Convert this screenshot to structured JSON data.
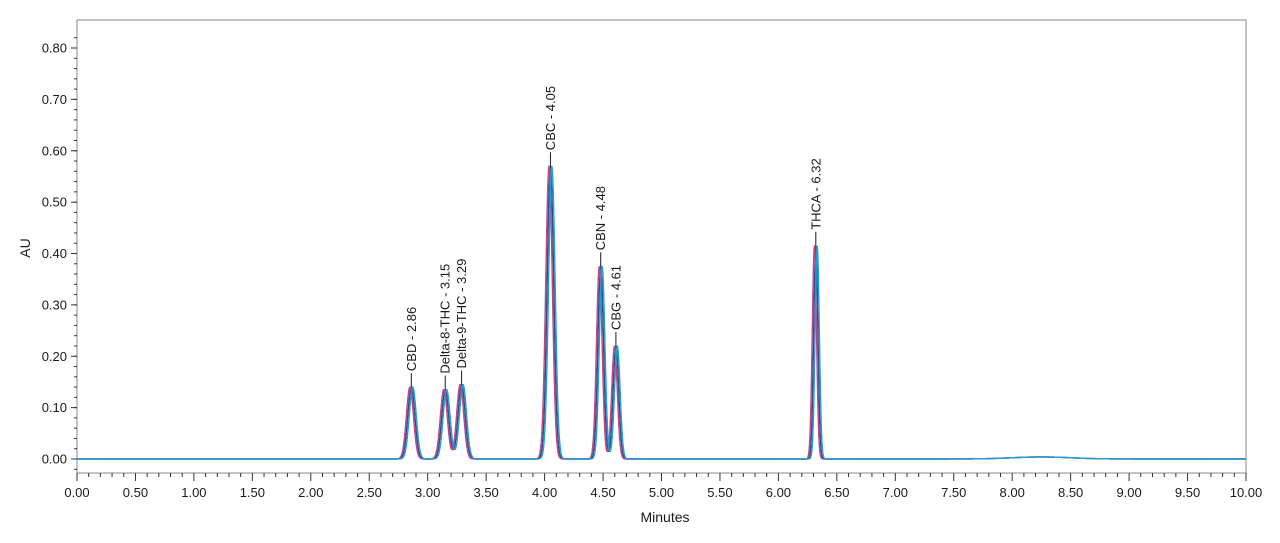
{
  "chart_data": {
    "type": "line",
    "xlabel": "Minutes",
    "ylabel": "AU",
    "xlim": [
      0.0,
      10.0
    ],
    "ylim": [
      -0.03,
      0.85
    ],
    "x_ticks": [
      "0.00",
      "0.50",
      "1.00",
      "1.50",
      "2.00",
      "2.50",
      "3.00",
      "3.50",
      "4.00",
      "4.50",
      "5.00",
      "5.50",
      "6.00",
      "6.50",
      "7.00",
      "7.50",
      "8.00",
      "8.50",
      "9.00",
      "9.50",
      "10.00"
    ],
    "y_ticks": [
      "0.00",
      "0.10",
      "0.20",
      "0.30",
      "0.40",
      "0.50",
      "0.60",
      "0.70",
      "0.80"
    ],
    "grid": false,
    "peaks": [
      {
        "label": "CBD - 2.86",
        "x": 2.86,
        "height": 0.14,
        "width": 0.03
      },
      {
        "label": "Delta-8-THC - 3.15",
        "x": 3.15,
        "height": 0.135,
        "width": 0.03
      },
      {
        "label": "Delta-9-THC - 3.29",
        "x": 3.29,
        "height": 0.145,
        "width": 0.03
      },
      {
        "label": "CBC - 4.05",
        "x": 4.05,
        "height": 0.57,
        "width": 0.028
      },
      {
        "label": "CBN - 4.48",
        "x": 4.48,
        "height": 0.375,
        "width": 0.024
      },
      {
        "label": "CBG - 4.61",
        "x": 4.61,
        "height": 0.22,
        "width": 0.024
      },
      {
        "label": "THCA - 6.32",
        "x": 6.32,
        "height": 0.415,
        "width": 0.018
      }
    ],
    "series_colors": [
      "#2f4a8f",
      "#c8417a",
      "#1aa0d8"
    ],
    "series_x_offsets": [
      0.0,
      -0.012,
      0.012
    ],
    "baseline_bump": {
      "x": 8.25,
      "height": 0.004,
      "width": 0.25
    }
  }
}
